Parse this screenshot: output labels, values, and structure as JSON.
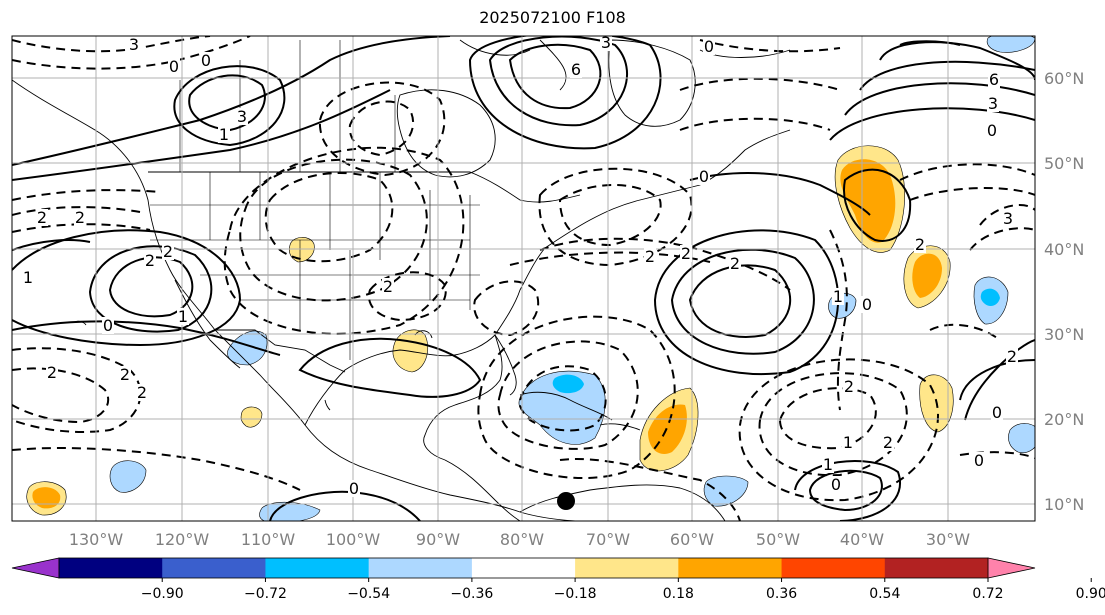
{
  "title": "2025072100 F108",
  "longitude_labels": [
    "130°W",
    "120°W",
    "110°W",
    "100°W",
    "90°W",
    "80°W",
    "70°W",
    "60°W",
    "50°W",
    "40°W",
    "30°W"
  ],
  "latitude_labels": [
    "60°N",
    "50°N",
    "40°N",
    "30°N",
    "20°N",
    "10°N"
  ],
  "colorbar": {
    "tick_labels": [
      "−0.90",
      "−0.72",
      "−0.54",
      "−0.36",
      "−0.18",
      "0.18",
      "0.36",
      "0.54",
      "0.72",
      "0.90"
    ],
    "bin_colors": [
      "#9932cc",
      "#000080",
      "#3a5fcd",
      "#00bfff",
      "#add8ff",
      "#ffffff",
      "#ffe68a",
      "#ffa500",
      "#ff4500",
      "#b22222",
      "#ff82ab"
    ]
  },
  "contour_labels": [
    "3",
    "0",
    "3",
    "6",
    "3",
    "0",
    "1",
    "6",
    "3",
    "0",
    "2",
    "2",
    "2",
    "0",
    "1",
    "2",
    "1",
    "2",
    "2",
    "2",
    "0",
    "2",
    "0",
    "2",
    "2",
    "1",
    "0",
    "1",
    "2",
    "2",
    "0",
    "3",
    "2",
    "2",
    "0",
    "1",
    "2",
    "0",
    "0"
  ],
  "fill_colors": {
    "positive_light": "#ffe68a",
    "positive_strong": "#ffa500",
    "negative_light": "#add8ff",
    "negative_strong": "#00bfff"
  },
  "marker_icon": "black-circle-marker"
}
